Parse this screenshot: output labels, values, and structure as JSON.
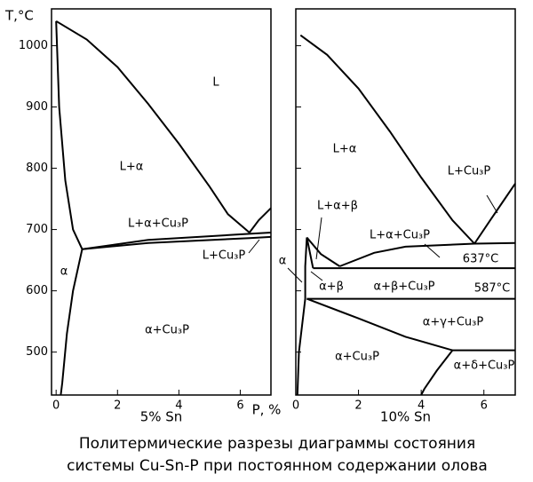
{
  "chart_data": [
    {
      "type": "phase-diagram",
      "subtitle": "5% Sn",
      "ylabel": "T,°C",
      "xlabel": "P, %",
      "xlim": [
        -0.15,
        7
      ],
      "ylim": [
        430,
        1060
      ],
      "xticks": [
        0,
        2,
        4,
        6
      ],
      "yticks": [
        500,
        600,
        700,
        800,
        900,
        1000
      ],
      "color": "#000000",
      "regions": [
        "L",
        "L+α",
        "L+α+Cu₃P",
        "L+Cu₃P",
        "α",
        "α+Cu₃P"
      ],
      "boundaries": [
        {
          "x": [
            0,
            1,
            2,
            3,
            4,
            5,
            5.6,
            6.3
          ],
          "y": [
            1040,
            1010,
            965,
            905,
            840,
            770,
            725,
            695
          ]
        },
        {
          "x": [
            6.3,
            6.6,
            7
          ],
          "y": [
            695,
            715,
            735
          ]
        },
        {
          "x": [
            0,
            0.1,
            0.3,
            0.55,
            0.85
          ],
          "y": [
            1040,
            900,
            780,
            700,
            668
          ]
        },
        {
          "x": [
            0.85,
            0.55,
            0.35,
            0.2,
            0.15
          ],
          "y": [
            668,
            600,
            530,
            450,
            430
          ]
        },
        {
          "x": [
            0.85,
            3,
            6.3,
            7
          ],
          "y": [
            668,
            683,
            693,
            695
          ]
        },
        {
          "x": [
            0.85,
            3,
            6.3,
            7
          ],
          "y": [
            668,
            678,
            686,
            688
          ]
        }
      ]
    },
    {
      "type": "phase-diagram",
      "subtitle": "10% Sn",
      "xlim": [
        0,
        7
      ],
      "ylim": [
        430,
        1060
      ],
      "xticks": [
        0,
        2,
        4,
        6
      ],
      "yticks": [
        500,
        600,
        700,
        800,
        900,
        1000
      ],
      "color": "#000000",
      "regions": [
        "L+α",
        "L+Cu₃P",
        "L+α+β",
        "L+α+Cu₃P",
        "637°C",
        "α",
        "α+β",
        "α+β+Cu₃P",
        "587°C",
        "α+γ+Cu₃P",
        "α+Cu₃P",
        "α+δ+Cu₃P"
      ],
      "boundaries": [
        {
          "x": [
            0.15,
            1,
            2,
            3,
            4,
            5,
            5.7
          ],
          "y": [
            1017,
            985,
            930,
            860,
            785,
            715,
            677
          ]
        },
        {
          "x": [
            5.7,
            6.2,
            6.6,
            7
          ],
          "y": [
            677,
            715,
            745,
            775
          ]
        },
        {
          "x": [
            0.35,
            0.8,
            1.4
          ],
          "y": [
            687,
            660,
            640
          ]
        },
        {
          "x": [
            1.4,
            2.5,
            3.5,
            5.7,
            7
          ],
          "y": [
            640,
            662,
            672,
            677,
            678
          ]
        },
        {
          "x": [
            0.55,
            7
          ],
          "y": [
            637,
            637
          ]
        },
        {
          "x": [
            0.35,
            7
          ],
          "y": [
            587,
            587
          ]
        },
        {
          "x": [
            0.35,
            0.3,
            0.3,
            0.1,
            0.05
          ],
          "y": [
            687,
            640,
            587,
            500,
            430
          ]
        },
        {
          "x": [
            0.35,
            0.55
          ],
          "y": [
            687,
            637
          ]
        },
        {
          "x": [
            0.35,
            2,
            3.5,
            5,
            7
          ],
          "y": [
            587,
            555,
            525,
            503,
            503
          ]
        },
        {
          "x": [
            5,
            4.5,
            4.1,
            4
          ],
          "y": [
            503,
            470,
            440,
            430
          ]
        }
      ]
    }
  ],
  "caption": [
    "Политермические разрезы диаграммы состояния",
    "системы Cu-Sn-P при постоянном содержании олова"
  ]
}
